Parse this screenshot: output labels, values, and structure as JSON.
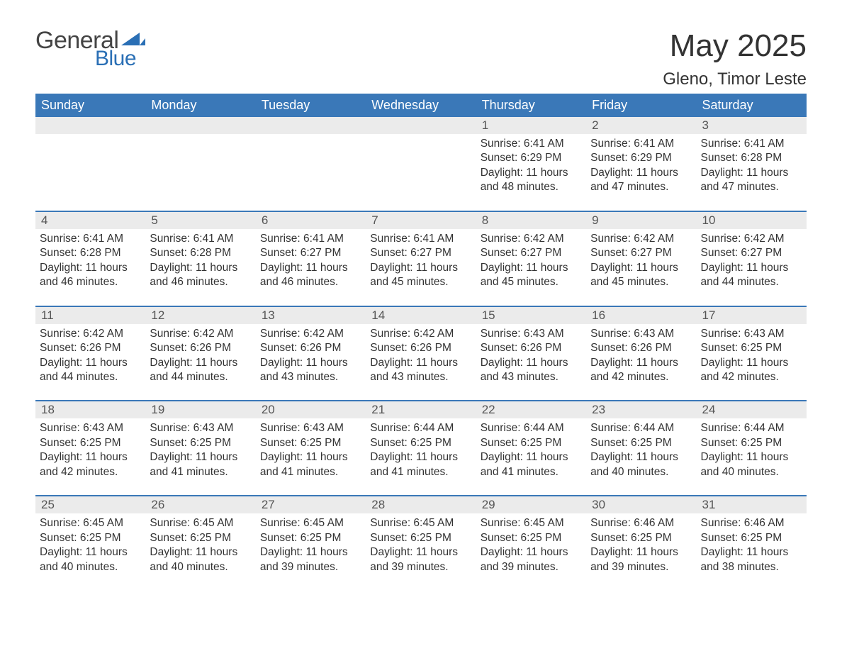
{
  "brand": {
    "word1": "General",
    "word2": "Blue"
  },
  "title": "May 2025",
  "location": "Gleno, Timor Leste",
  "colors": {
    "header_bg": "#3a78b8",
    "header_text": "#ffffff",
    "daynum_bg": "#ebebeb",
    "border": "#3a78b8",
    "text": "#333333",
    "logo_blue": "#2a6fb5"
  },
  "weekdays": [
    "Sunday",
    "Monday",
    "Tuesday",
    "Wednesday",
    "Thursday",
    "Friday",
    "Saturday"
  ],
  "weeks": [
    [
      {
        "n": "",
        "sunrise": "",
        "sunset": "",
        "daylight": ""
      },
      {
        "n": "",
        "sunrise": "",
        "sunset": "",
        "daylight": ""
      },
      {
        "n": "",
        "sunrise": "",
        "sunset": "",
        "daylight": ""
      },
      {
        "n": "",
        "sunrise": "",
        "sunset": "",
        "daylight": ""
      },
      {
        "n": "1",
        "sunrise": "Sunrise: 6:41 AM",
        "sunset": "Sunset: 6:29 PM",
        "daylight": "Daylight: 11 hours and 48 minutes."
      },
      {
        "n": "2",
        "sunrise": "Sunrise: 6:41 AM",
        "sunset": "Sunset: 6:29 PM",
        "daylight": "Daylight: 11 hours and 47 minutes."
      },
      {
        "n": "3",
        "sunrise": "Sunrise: 6:41 AM",
        "sunset": "Sunset: 6:28 PM",
        "daylight": "Daylight: 11 hours and 47 minutes."
      }
    ],
    [
      {
        "n": "4",
        "sunrise": "Sunrise: 6:41 AM",
        "sunset": "Sunset: 6:28 PM",
        "daylight": "Daylight: 11 hours and 46 minutes."
      },
      {
        "n": "5",
        "sunrise": "Sunrise: 6:41 AM",
        "sunset": "Sunset: 6:28 PM",
        "daylight": "Daylight: 11 hours and 46 minutes."
      },
      {
        "n": "6",
        "sunrise": "Sunrise: 6:41 AM",
        "sunset": "Sunset: 6:27 PM",
        "daylight": "Daylight: 11 hours and 46 minutes."
      },
      {
        "n": "7",
        "sunrise": "Sunrise: 6:41 AM",
        "sunset": "Sunset: 6:27 PM",
        "daylight": "Daylight: 11 hours and 45 minutes."
      },
      {
        "n": "8",
        "sunrise": "Sunrise: 6:42 AM",
        "sunset": "Sunset: 6:27 PM",
        "daylight": "Daylight: 11 hours and 45 minutes."
      },
      {
        "n": "9",
        "sunrise": "Sunrise: 6:42 AM",
        "sunset": "Sunset: 6:27 PM",
        "daylight": "Daylight: 11 hours and 45 minutes."
      },
      {
        "n": "10",
        "sunrise": "Sunrise: 6:42 AM",
        "sunset": "Sunset: 6:27 PM",
        "daylight": "Daylight: 11 hours and 44 minutes."
      }
    ],
    [
      {
        "n": "11",
        "sunrise": "Sunrise: 6:42 AM",
        "sunset": "Sunset: 6:26 PM",
        "daylight": "Daylight: 11 hours and 44 minutes."
      },
      {
        "n": "12",
        "sunrise": "Sunrise: 6:42 AM",
        "sunset": "Sunset: 6:26 PM",
        "daylight": "Daylight: 11 hours and 44 minutes."
      },
      {
        "n": "13",
        "sunrise": "Sunrise: 6:42 AM",
        "sunset": "Sunset: 6:26 PM",
        "daylight": "Daylight: 11 hours and 43 minutes."
      },
      {
        "n": "14",
        "sunrise": "Sunrise: 6:42 AM",
        "sunset": "Sunset: 6:26 PM",
        "daylight": "Daylight: 11 hours and 43 minutes."
      },
      {
        "n": "15",
        "sunrise": "Sunrise: 6:43 AM",
        "sunset": "Sunset: 6:26 PM",
        "daylight": "Daylight: 11 hours and 43 minutes."
      },
      {
        "n": "16",
        "sunrise": "Sunrise: 6:43 AM",
        "sunset": "Sunset: 6:26 PM",
        "daylight": "Daylight: 11 hours and 42 minutes."
      },
      {
        "n": "17",
        "sunrise": "Sunrise: 6:43 AM",
        "sunset": "Sunset: 6:25 PM",
        "daylight": "Daylight: 11 hours and 42 minutes."
      }
    ],
    [
      {
        "n": "18",
        "sunrise": "Sunrise: 6:43 AM",
        "sunset": "Sunset: 6:25 PM",
        "daylight": "Daylight: 11 hours and 42 minutes."
      },
      {
        "n": "19",
        "sunrise": "Sunrise: 6:43 AM",
        "sunset": "Sunset: 6:25 PM",
        "daylight": "Daylight: 11 hours and 41 minutes."
      },
      {
        "n": "20",
        "sunrise": "Sunrise: 6:43 AM",
        "sunset": "Sunset: 6:25 PM",
        "daylight": "Daylight: 11 hours and 41 minutes."
      },
      {
        "n": "21",
        "sunrise": "Sunrise: 6:44 AM",
        "sunset": "Sunset: 6:25 PM",
        "daylight": "Daylight: 11 hours and 41 minutes."
      },
      {
        "n": "22",
        "sunrise": "Sunrise: 6:44 AM",
        "sunset": "Sunset: 6:25 PM",
        "daylight": "Daylight: 11 hours and 41 minutes."
      },
      {
        "n": "23",
        "sunrise": "Sunrise: 6:44 AM",
        "sunset": "Sunset: 6:25 PM",
        "daylight": "Daylight: 11 hours and 40 minutes."
      },
      {
        "n": "24",
        "sunrise": "Sunrise: 6:44 AM",
        "sunset": "Sunset: 6:25 PM",
        "daylight": "Daylight: 11 hours and 40 minutes."
      }
    ],
    [
      {
        "n": "25",
        "sunrise": "Sunrise: 6:45 AM",
        "sunset": "Sunset: 6:25 PM",
        "daylight": "Daylight: 11 hours and 40 minutes."
      },
      {
        "n": "26",
        "sunrise": "Sunrise: 6:45 AM",
        "sunset": "Sunset: 6:25 PM",
        "daylight": "Daylight: 11 hours and 40 minutes."
      },
      {
        "n": "27",
        "sunrise": "Sunrise: 6:45 AM",
        "sunset": "Sunset: 6:25 PM",
        "daylight": "Daylight: 11 hours and 39 minutes."
      },
      {
        "n": "28",
        "sunrise": "Sunrise: 6:45 AM",
        "sunset": "Sunset: 6:25 PM",
        "daylight": "Daylight: 11 hours and 39 minutes."
      },
      {
        "n": "29",
        "sunrise": "Sunrise: 6:45 AM",
        "sunset": "Sunset: 6:25 PM",
        "daylight": "Daylight: 11 hours and 39 minutes."
      },
      {
        "n": "30",
        "sunrise": "Sunrise: 6:46 AM",
        "sunset": "Sunset: 6:25 PM",
        "daylight": "Daylight: 11 hours and 39 minutes."
      },
      {
        "n": "31",
        "sunrise": "Sunrise: 6:46 AM",
        "sunset": "Sunset: 6:25 PM",
        "daylight": "Daylight: 11 hours and 38 minutes."
      }
    ]
  ]
}
